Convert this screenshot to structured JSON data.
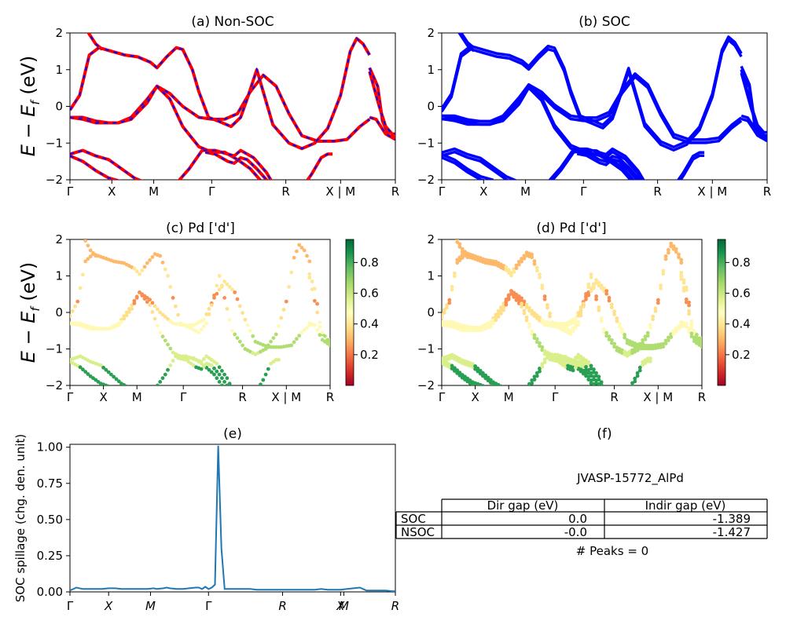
{
  "figure": {
    "panels": {
      "a": {
        "title": "(a) Non-SOC"
      },
      "b": {
        "title": "(b) SOC"
      },
      "c": {
        "title": "(c)  Pd ['d']"
      },
      "d": {
        "title": "(d) Pd ['d']"
      },
      "e": {
        "title": "(e)"
      },
      "f": {
        "title": "(f)"
      }
    },
    "energy_ylabel_main": "E − E",
    "energy_ylabel_sub": "f",
    "energy_ylabel_tail": " (eV)",
    "spillage_ylabel": "SOC spillage (chg. den. unit)",
    "kpath_labels": [
      "Γ",
      "X",
      "M",
      "Γ",
      "R",
      "X | M",
      "R"
    ],
    "spillage_kpath_labels": [
      "Γ",
      "X",
      "M",
      "Γ",
      "R",
      "X",
      "M",
      "R"
    ],
    "energy_yticks": [
      "2",
      "1",
      "0",
      "−1",
      "−2"
    ],
    "colorbar_ticks": [
      "0.8",
      "0.6",
      "0.4",
      "0.2"
    ],
    "spillage_yticks": [
      "1.00",
      "0.75",
      "0.50",
      "0.25",
      "0.00"
    ],
    "table": {
      "caption": "JVASP-15772_AlPd",
      "columns": [
        "Dir gap (eV)",
        "Indir gap (eV)"
      ],
      "rows": [
        {
          "label": "SOC",
          "dir": "0.0",
          "indir": "-1.389"
        },
        {
          "label": "NSOC",
          "dir": "-0.0",
          "indir": "-1.427"
        }
      ],
      "peaks": "# Peaks = 0"
    }
  },
  "chart_data": [
    {
      "type": "line",
      "title": "(a) Non-SOC",
      "ylabel": "E − E_f (eV)",
      "ylim": [
        -2,
        2
      ],
      "x_ticks": [
        "Γ",
        "X",
        "M",
        "Γ",
        "R",
        "X | M",
        "R"
      ],
      "series_colors": [
        "#ff0000",
        "#0000ff"
      ],
      "bands": [
        [
          [
            0,
            -0.3
          ],
          [
            4,
            -0.3
          ],
          [
            8,
            -0.4
          ],
          [
            12,
            -0.45
          ],
          [
            15,
            -0.45
          ],
          [
            19,
            -0.3
          ],
          [
            24,
            0.2
          ],
          [
            27,
            0.55
          ],
          [
            31,
            0.35
          ],
          [
            35,
            0
          ],
          [
            40,
            -0.3
          ],
          [
            44,
            -0.35
          ],
          [
            48,
            -0.35
          ],
          [
            52,
            -0.2
          ],
          [
            56,
            0.4
          ],
          [
            60,
            0.85
          ],
          [
            64,
            0.55
          ],
          [
            68,
            -0.2
          ],
          [
            72,
            -0.8
          ],
          [
            77,
            -0.95
          ],
          [
            82,
            -0.95
          ],
          [
            86,
            -0.9
          ],
          [
            90,
            -0.55
          ],
          [
            93,
            -0.35
          ]
        ],
        [
          [
            0,
            -0.3
          ],
          [
            4,
            -0.35
          ],
          [
            8,
            -0.45
          ],
          [
            12,
            -0.45
          ],
          [
            15,
            -0.45
          ],
          [
            19,
            -0.35
          ],
          [
            24,
            0.1
          ],
          [
            27,
            0.55
          ],
          [
            31,
            0.2
          ],
          [
            35,
            -0.55
          ],
          [
            40,
            -1.1
          ],
          [
            44,
            -1.25
          ],
          [
            48,
            -1.25
          ],
          [
            52,
            -1.45
          ],
          [
            56,
            -1.7
          ],
          [
            60,
            -2.1
          ]
        ],
        [
          [
            0,
            -0.1
          ],
          [
            3,
            0.3
          ],
          [
            6,
            1.4
          ],
          [
            9,
            1.6
          ],
          [
            13,
            1.5
          ],
          [
            17,
            1.4
          ],
          [
            21,
            1.35
          ],
          [
            25,
            1.2
          ],
          [
            27,
            1.05
          ],
          [
            30,
            1.35
          ],
          [
            33,
            1.6
          ],
          [
            35,
            1.55
          ],
          [
            38,
            1.0
          ],
          [
            40,
            0.4
          ],
          [
            43,
            -0.3
          ],
          [
            46,
            -0.4
          ],
          [
            50,
            -0.55
          ],
          [
            53,
            -0.3
          ],
          [
            55,
            0.2
          ],
          [
            58,
            1.0
          ],
          [
            63,
            -0.5
          ],
          [
            68,
            -1.0
          ],
          [
            72,
            -1.15
          ],
          [
            76,
            -1.0
          ],
          [
            80,
            -0.6
          ],
          [
            84,
            0.3
          ],
          [
            87,
            1.5
          ],
          [
            89,
            1.85
          ],
          [
            91,
            1.7
          ],
          [
            93,
            1.4
          ]
        ],
        [
          [
            0,
            -1.3
          ],
          [
            4,
            -1.2
          ],
          [
            8,
            -1.35
          ],
          [
            12,
            -1.45
          ],
          [
            16,
            -1.7
          ],
          [
            20,
            -1.95
          ],
          [
            24,
            -2.1
          ]
        ],
        [
          [
            0,
            -1.35
          ],
          [
            4,
            -1.5
          ],
          [
            8,
            -1.75
          ],
          [
            12,
            -1.95
          ],
          [
            16,
            -2.05
          ]
        ],
        [
          [
            5,
            2.1
          ],
          [
            8,
            1.7
          ],
          [
            10,
            1.55
          ]
        ],
        [
          [
            33,
            -2.1
          ],
          [
            37,
            -1.7
          ],
          [
            41,
            -1.2
          ],
          [
            45,
            -1.2
          ],
          [
            49,
            -1.3
          ],
          [
            51,
            -1.35
          ],
          [
            53,
            -1.2
          ],
          [
            57,
            -1.4
          ],
          [
            61,
            -1.8
          ],
          [
            63,
            -2.1
          ]
        ],
        [
          [
            42,
            -1.25
          ],
          [
            45,
            -1.3
          ],
          [
            49,
            -1.5
          ],
          [
            51,
            -1.55
          ],
          [
            53,
            -1.4
          ],
          [
            55,
            -1.45
          ],
          [
            58,
            -1.7
          ],
          [
            62,
            -2.1
          ]
        ],
        [
          [
            73,
            -2.1
          ],
          [
            75,
            -1.85
          ],
          [
            78,
            -1.4
          ],
          [
            80,
            -1.3
          ],
          [
            81.5,
            -1.3
          ]
        ],
        [
          [
            93,
            1.05
          ],
          [
            95.5,
            0.55
          ],
          [
            97,
            -0.4
          ],
          [
            99,
            -0.8
          ],
          [
            101,
            -0.85
          ]
        ],
        [
          [
            93,
            0.95
          ],
          [
            96,
            0.0
          ],
          [
            98,
            -0.55
          ],
          [
            100,
            -0.75
          ],
          [
            101,
            -0.75
          ]
        ],
        [
          [
            93,
            -0.3
          ],
          [
            95,
            -0.35
          ],
          [
            98,
            -0.75
          ],
          [
            101,
            -0.9
          ]
        ]
      ]
    },
    {
      "type": "line",
      "title": "(b) SOC",
      "ylim": [
        -2,
        2
      ],
      "x_ticks": [
        "Γ",
        "X",
        "M",
        "Γ",
        "R",
        "X | M",
        "R"
      ],
      "series_colors": [
        "#0000ff"
      ]
    },
    {
      "type": "scatter",
      "title": "(c)  Pd ['d']",
      "ylabel": "E − E_f (eV)",
      "ylim": [
        -2,
        2
      ],
      "colorbar": {
        "range": [
          0.0,
          0.95
        ],
        "colormap": "RdYlGn"
      },
      "x_ticks": [
        "Γ",
        "X",
        "M",
        "Γ",
        "R",
        "X | M",
        "R"
      ]
    },
    {
      "type": "scatter",
      "title": "(d) Pd ['d']",
      "ylim": [
        -2,
        2
      ],
      "colorbar": {
        "range": [
          0.0,
          0.95
        ],
        "colormap": "RdYlGn"
      },
      "x_ticks": [
        "Γ",
        "X",
        "M",
        "Γ",
        "R",
        "X | M",
        "R"
      ]
    },
    {
      "type": "line",
      "title": "(e)",
      "ylabel": "SOC spillage (chg. den. unit)",
      "ylim": [
        0,
        1.02
      ],
      "x_ticks": [
        "Γ",
        "X",
        "M",
        "Γ",
        "R",
        "X",
        "M",
        "R"
      ],
      "series": [
        {
          "color": "#1f77b4",
          "x": [
            0,
            2,
            4,
            6,
            8,
            10,
            12,
            14,
            16,
            18,
            20,
            22,
            24,
            26,
            27,
            29,
            30,
            31,
            33,
            35,
            37,
            39,
            40,
            41,
            42,
            43,
            44,
            45,
            46,
            47,
            48,
            50,
            52,
            54,
            56,
            58,
            60,
            62,
            64,
            66,
            68,
            70,
            72,
            74,
            76,
            78,
            80,
            82,
            84,
            86,
            88,
            90,
            92,
            94,
            96,
            98,
            100,
            101
          ],
          "values": [
            0.01,
            0.03,
            0.02,
            0.02,
            0.02,
            0.02,
            0.025,
            0.025,
            0.02,
            0.02,
            0.02,
            0.02,
            0.02,
            0.025,
            0.02,
            0.025,
            0.03,
            0.025,
            0.02,
            0.02,
            0.025,
            0.03,
            0.03,
            0.02,
            0.035,
            0.02,
            0.03,
            0.05,
            1.01,
            0.3,
            0.02,
            0.02,
            0.02,
            0.02,
            0.02,
            0.015,
            0.015,
            0.015,
            0.015,
            0.015,
            0.015,
            0.015,
            0.015,
            0.015,
            0.015,
            0.02,
            0.015,
            0.015,
            0.015,
            0.02,
            0.025,
            0.03,
            0.01,
            0.01,
            0.01,
            0.01,
            0.005,
            0.005
          ]
        }
      ]
    }
  ]
}
